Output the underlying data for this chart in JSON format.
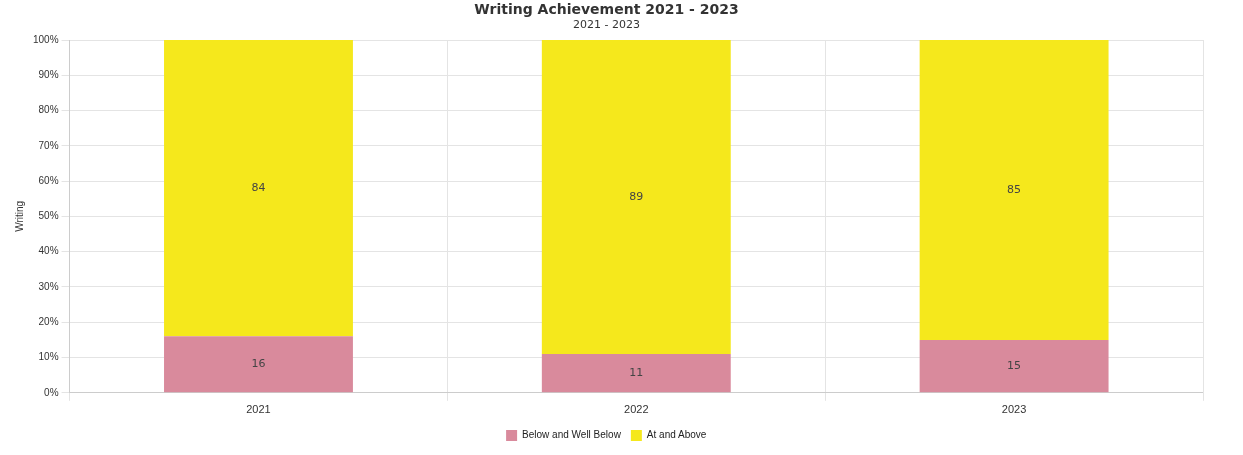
{
  "chart_data": {
    "type": "bar",
    "title": "Writing Achievement 2021 - 2023",
    "subtitle": "2021 - 2023",
    "ylabel": "Writing",
    "categories": [
      "2021",
      "2022",
      "2023"
    ],
    "series": [
      {
        "name": "Below and Well Below",
        "color": "#d98a9c",
        "values": [
          16,
          11,
          15
        ]
      },
      {
        "name": "At and Above",
        "color": "#f5e81c",
        "values": [
          84,
          89,
          85
        ]
      }
    ],
    "stacked": true,
    "data_labels": true,
    "ylim": [
      0,
      100
    ],
    "yticks": [
      {
        "value": 0,
        "label": "0%"
      },
      {
        "value": 10,
        "label": "10%"
      },
      {
        "value": 20,
        "label": "20%"
      },
      {
        "value": 30,
        "label": "30%"
      },
      {
        "value": 40,
        "label": "40%"
      },
      {
        "value": 50,
        "label": "50%"
      },
      {
        "value": 60,
        "label": "60%"
      },
      {
        "value": 70,
        "label": "70%"
      },
      {
        "value": 80,
        "label": "80%"
      },
      {
        "value": 90,
        "label": "90%"
      },
      {
        "value": 100,
        "label": "100%"
      }
    ],
    "grid": true,
    "legend": "bottom"
  }
}
